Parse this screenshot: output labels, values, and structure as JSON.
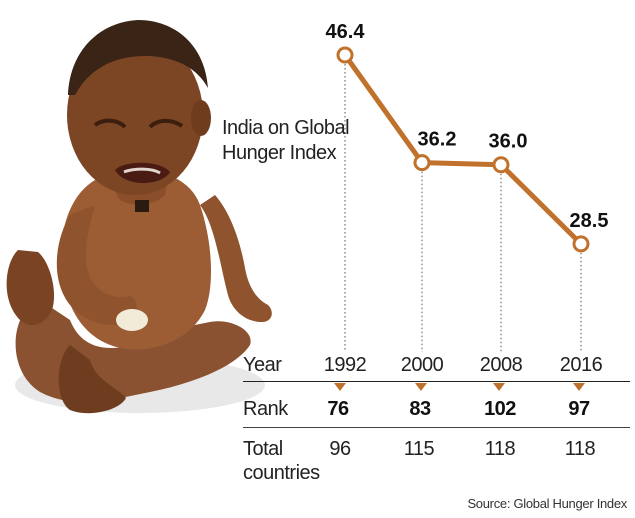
{
  "chart_data": {
    "type": "line",
    "title": [
      "India on Global",
      "Hunger Index"
    ],
    "x": [
      "1992",
      "2000",
      "2008",
      "2016"
    ],
    "values": [
      46.4,
      36.2,
      36.0,
      28.5
    ],
    "value_labels": [
      "46.4",
      "36.2",
      "36.0",
      "28.5"
    ],
    "line_color": "#c0712b",
    "grid": false
  },
  "table": {
    "year_label": "Year",
    "rank_label": "Rank",
    "total_label": [
      "Total",
      "countries"
    ],
    "years": [
      "1992",
      "2000",
      "2008",
      "2016"
    ],
    "ranks": [
      "76",
      "83",
      "102",
      "97"
    ],
    "totals": [
      "96",
      "115",
      "118",
      "118"
    ]
  },
  "source": "Source: Global Hunger Index",
  "photo_icon": "crying-child-photo",
  "colors": {
    "accent": "#c0712b",
    "text": "#1a1a1a"
  }
}
